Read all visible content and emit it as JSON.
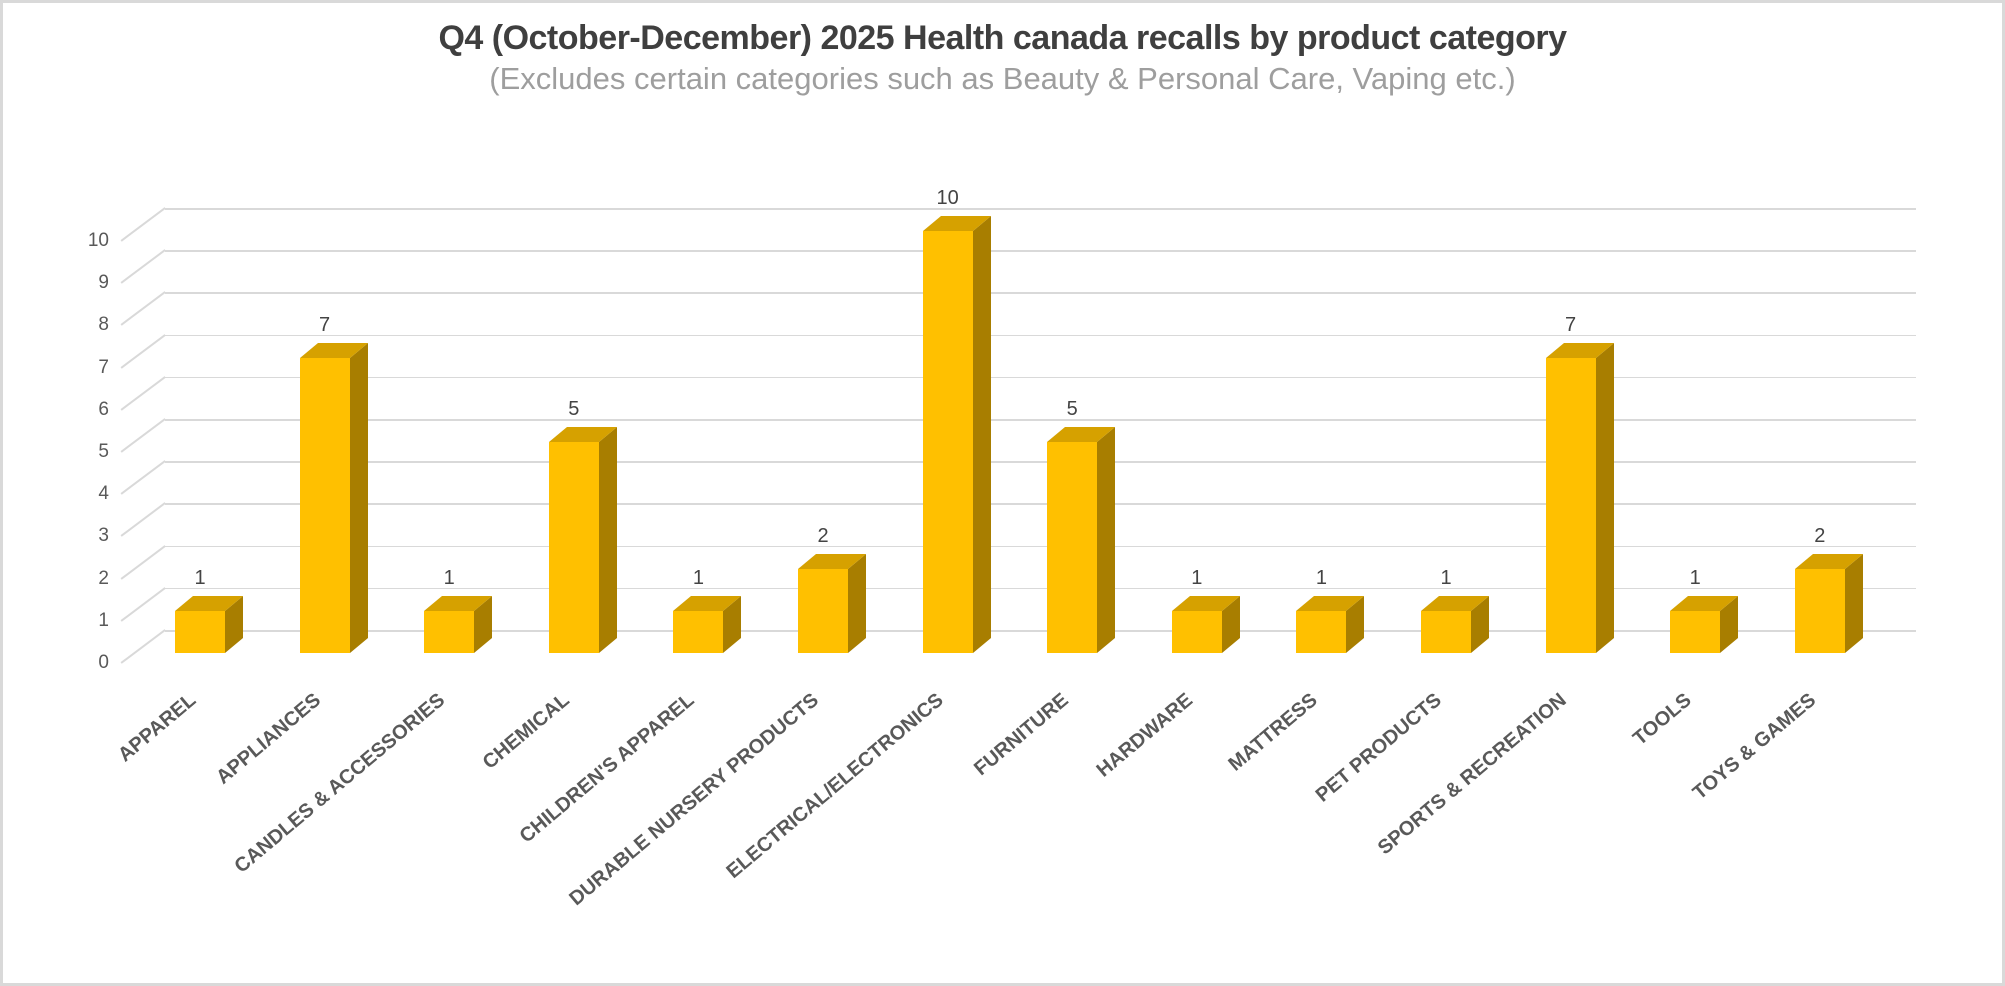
{
  "chart_data": {
    "type": "bar",
    "style": "3d-column",
    "title": "Q4 (October-December) 2025 Health canada recalls by product category",
    "subtitle": "(Excludes certain categories such as Beauty & Personal Care, Vaping etc.)",
    "categories": [
      "APPAREL",
      "APPLIANCES",
      "CANDLES & ACCESSORIES",
      "CHEMICAL",
      "CHILDREN'S APPAREL",
      "DURABLE NURSERY PRODUCTS",
      "ELECTRICAL/ELECTRONICS",
      "FURNITURE",
      "HARDWARE",
      "MATTRESS",
      "PET PRODUCTS",
      "SPORTS & RECREATION",
      "TOOLS",
      "TOYS & GAMES"
    ],
    "values": [
      1,
      7,
      1,
      5,
      1,
      2,
      10,
      5,
      1,
      1,
      1,
      7,
      1,
      2
    ],
    "data_labels": true,
    "y_ticks": [
      0,
      1,
      2,
      3,
      4,
      5,
      6,
      7,
      8,
      9,
      10
    ],
    "ylim": [
      0,
      10
    ],
    "xlabel": "",
    "ylabel": "",
    "grid": true,
    "legend": "none",
    "colors": {
      "bar_front": "#FFC000",
      "bar_top": "#D6A100",
      "bar_side": "#A87E00",
      "gridline": "#D9D9D9",
      "axis_text": "#595959",
      "data_label": "#444444",
      "title": "#3F3F3F",
      "subtitle": "#9E9E9E",
      "border": "#D9D9D9"
    }
  }
}
